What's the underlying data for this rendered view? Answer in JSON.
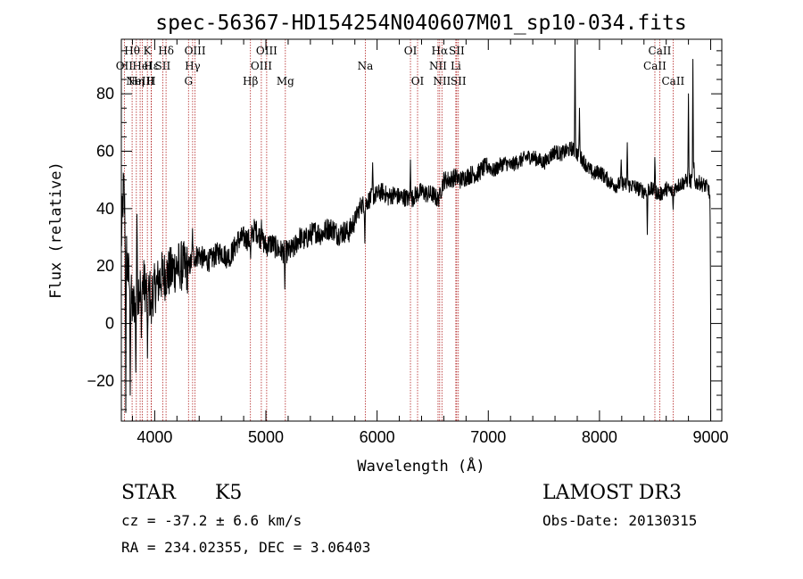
{
  "chart_data": {
    "type": "line",
    "title": "spec-56367-HD154254N040607M01_sp10-034.fits",
    "xlabel": "Wavelength (Å)",
    "ylabel": "Flux (relative)",
    "xlim": [
      3700,
      9100
    ],
    "ylim": [
      -34,
      99
    ],
    "xticks": [
      4000,
      5000,
      6000,
      7000,
      8000,
      9000
    ],
    "yticks": [
      -20,
      0,
      20,
      40,
      60,
      80
    ],
    "spectrum_anchors": [
      [
        3700,
        28
      ],
      [
        3720,
        48
      ],
      [
        3750,
        22
      ],
      [
        3800,
        5
      ],
      [
        3850,
        12
      ],
      [
        3900,
        14
      ],
      [
        3950,
        10
      ],
      [
        4000,
        12
      ],
      [
        4050,
        16
      ],
      [
        4100,
        17
      ],
      [
        4150,
        18
      ],
      [
        4200,
        20
      ],
      [
        4250,
        20
      ],
      [
        4300,
        19
      ],
      [
        4350,
        23
      ],
      [
        4400,
        24
      ],
      [
        4450,
        22
      ],
      [
        4500,
        22
      ],
      [
        4550,
        24
      ],
      [
        4600,
        25
      ],
      [
        4650,
        23
      ],
      [
        4700,
        25
      ],
      [
        4750,
        29
      ],
      [
        4800,
        30
      ],
      [
        4850,
        29
      ],
      [
        4900,
        33
      ],
      [
        4950,
        30
      ],
      [
        5000,
        27
      ],
      [
        5050,
        28
      ],
      [
        5100,
        26
      ],
      [
        5150,
        25
      ],
      [
        5200,
        25
      ],
      [
        5250,
        26
      ],
      [
        5300,
        30
      ],
      [
        5350,
        29
      ],
      [
        5400,
        31
      ],
      [
        5450,
        32
      ],
      [
        5500,
        31
      ],
      [
        5550,
        33
      ],
      [
        5600,
        33
      ],
      [
        5650,
        31
      ],
      [
        5700,
        32
      ],
      [
        5750,
        32
      ],
      [
        5800,
        36
      ],
      [
        5850,
        41
      ],
      [
        5900,
        42
      ],
      [
        5950,
        44
      ],
      [
        6000,
        45
      ],
      [
        6050,
        46
      ],
      [
        6100,
        44
      ],
      [
        6150,
        45
      ],
      [
        6200,
        44
      ],
      [
        6250,
        44
      ],
      [
        6300,
        43
      ],
      [
        6350,
        45
      ],
      [
        6400,
        46
      ],
      [
        6450,
        45
      ],
      [
        6500,
        45
      ],
      [
        6550,
        43
      ],
      [
        6600,
        50
      ],
      [
        6650,
        50
      ],
      [
        6700,
        51
      ],
      [
        6750,
        50
      ],
      [
        6800,
        51
      ],
      [
        6850,
        52
      ],
      [
        6900,
        52
      ],
      [
        6950,
        54
      ],
      [
        7000,
        55
      ],
      [
        7050,
        53
      ],
      [
        7100,
        55
      ],
      [
        7150,
        56
      ],
      [
        7200,
        55
      ],
      [
        7250,
        56
      ],
      [
        7300,
        57
      ],
      [
        7350,
        58
      ],
      [
        7400,
        58
      ],
      [
        7450,
        57
      ],
      [
        7500,
        56
      ],
      [
        7550,
        58
      ],
      [
        7600,
        60
      ],
      [
        7650,
        59
      ],
      [
        7700,
        60
      ],
      [
        7750,
        61
      ],
      [
        7800,
        59
      ],
      [
        7850,
        57
      ],
      [
        7900,
        54
      ],
      [
        7950,
        52
      ],
      [
        8000,
        53
      ],
      [
        8050,
        51
      ],
      [
        8100,
        49
      ],
      [
        8150,
        48
      ],
      [
        8200,
        49
      ],
      [
        8250,
        48
      ],
      [
        8300,
        48
      ],
      [
        8350,
        47
      ],
      [
        8400,
        46
      ],
      [
        8450,
        47
      ],
      [
        8500,
        46
      ],
      [
        8550,
        45
      ],
      [
        8600,
        47
      ],
      [
        8650,
        46
      ],
      [
        8700,
        48
      ],
      [
        8750,
        49
      ],
      [
        8800,
        50
      ],
      [
        8850,
        49
      ],
      [
        8900,
        49
      ],
      [
        8950,
        48
      ],
      [
        8980,
        47
      ],
      [
        9000,
        42
      ]
    ],
    "spectrum_features": [
      [
        3740,
        -31
      ],
      [
        3780,
        -25
      ],
      [
        3830,
        -17
      ],
      [
        3840,
        38
      ],
      [
        3880,
        -5
      ],
      [
        3935,
        -12
      ],
      [
        3970,
        0
      ],
      [
        4226,
        13
      ],
      [
        4340,
        33
      ],
      [
        4680,
        20
      ],
      [
        4862,
        22
      ],
      [
        4960,
        36
      ],
      [
        5170,
        12
      ],
      [
        5890,
        28
      ],
      [
        5960,
        56
      ],
      [
        6300,
        57
      ],
      [
        6563,
        47
      ],
      [
        7780,
        99
      ],
      [
        7820,
        75
      ],
      [
        8195,
        57
      ],
      [
        8250,
        63
      ],
      [
        8430,
        31
      ],
      [
        8498,
        59
      ],
      [
        8542,
        43
      ],
      [
        8662,
        39
      ],
      [
        8800,
        80
      ],
      [
        8840,
        92
      ],
      [
        8850,
        56
      ],
      [
        9000,
        0
      ]
    ],
    "spectral_lines": [
      {
        "wavelength": 3727,
        "label": "OII",
        "row": 1
      },
      {
        "wavelength": 3797,
        "label": "Hθ",
        "row": 0
      },
      {
        "wavelength": 3835,
        "label": "Hη",
        "row": 2
      },
      {
        "wavelength": 3869,
        "label": "NeIII",
        "row": 2
      },
      {
        "wavelength": 3889,
        "label": "HeI",
        "row": 1
      },
      {
        "wavelength": 3934,
        "label": "K",
        "row": 0
      },
      {
        "wavelength": 3968,
        "label": "H",
        "row": 2
      },
      {
        "wavelength": 3970,
        "label": "Hε",
        "row": 1
      },
      {
        "wavelength": 4072,
        "label": "SII",
        "row": 1
      },
      {
        "wavelength": 4102,
        "label": "Hδ",
        "row": 0
      },
      {
        "wavelength": 4304,
        "label": "G",
        "row": 2
      },
      {
        "wavelength": 4341,
        "label": "Hγ",
        "row": 1
      },
      {
        "wavelength": 4363,
        "label": "OIII",
        "row": 0
      },
      {
        "wavelength": 4861,
        "label": "Hβ",
        "row": 2
      },
      {
        "wavelength": 4959,
        "label": "OIII",
        "row": 1
      },
      {
        "wavelength": 5007,
        "label": "OIII",
        "row": 0
      },
      {
        "wavelength": 5175,
        "label": "Mg",
        "row": 2
      },
      {
        "wavelength": 5894,
        "label": "Na",
        "row": 1
      },
      {
        "wavelength": 6300,
        "label": "OI",
        "row": 0
      },
      {
        "wavelength": 6364,
        "label": "OI",
        "row": 2
      },
      {
        "wavelength": 6548,
        "label": "NII",
        "row": 1
      },
      {
        "wavelength": 6563,
        "label": "Hα",
        "row": 0
      },
      {
        "wavelength": 6583,
        "label": "NII",
        "row": 2
      },
      {
        "wavelength": 6708,
        "label": "Li",
        "row": 1
      },
      {
        "wavelength": 6716,
        "label": "SII",
        "row": 0
      },
      {
        "wavelength": 6731,
        "label": "SII",
        "row": 2
      },
      {
        "wavelength": 8498,
        "label": "CaII",
        "row": 1
      },
      {
        "wavelength": 8542,
        "label": "CaII",
        "row": 0
      },
      {
        "wavelength": 8662,
        "label": "CaII",
        "row": 2
      }
    ]
  },
  "info": {
    "class": "STAR",
    "subclass": "K5",
    "cz": "cz = -37.2 ± 6.6 km/s",
    "radec": "RA = 234.02355, DEC =   3.06403",
    "survey": "LAMOST DR3",
    "obsdate": "Obs-Date: 20130315"
  },
  "colors": {
    "spectrum": "#000000",
    "line_markers": "#b22222",
    "axes": "#000000"
  }
}
